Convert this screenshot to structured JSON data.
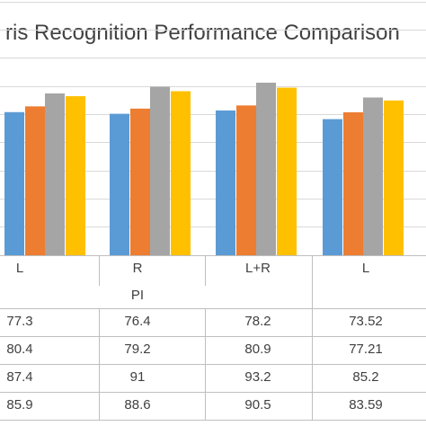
{
  "chart_data": {
    "type": "bar",
    "title": "ris Recognition Performance Comparison",
    "categories": [
      "L",
      "R",
      "L+R",
      "L"
    ],
    "group_label": "PI",
    "series": [
      {
        "values": [
          77.3,
          76.4,
          78.2,
          73.52
        ],
        "color": "#5B9BD5"
      },
      {
        "values": [
          80.4,
          79.2,
          80.9,
          77.21
        ],
        "color": "#ED7D31"
      },
      {
        "values": [
          87.4,
          91,
          93.2,
          85.2
        ],
        "color": "#A5A5A5"
      },
      {
        "values": [
          85.9,
          88.6,
          90.5,
          83.59
        ],
        "color": "#FFC000"
      }
    ],
    "ylim": [
      0,
      100
    ],
    "grid": true
  }
}
